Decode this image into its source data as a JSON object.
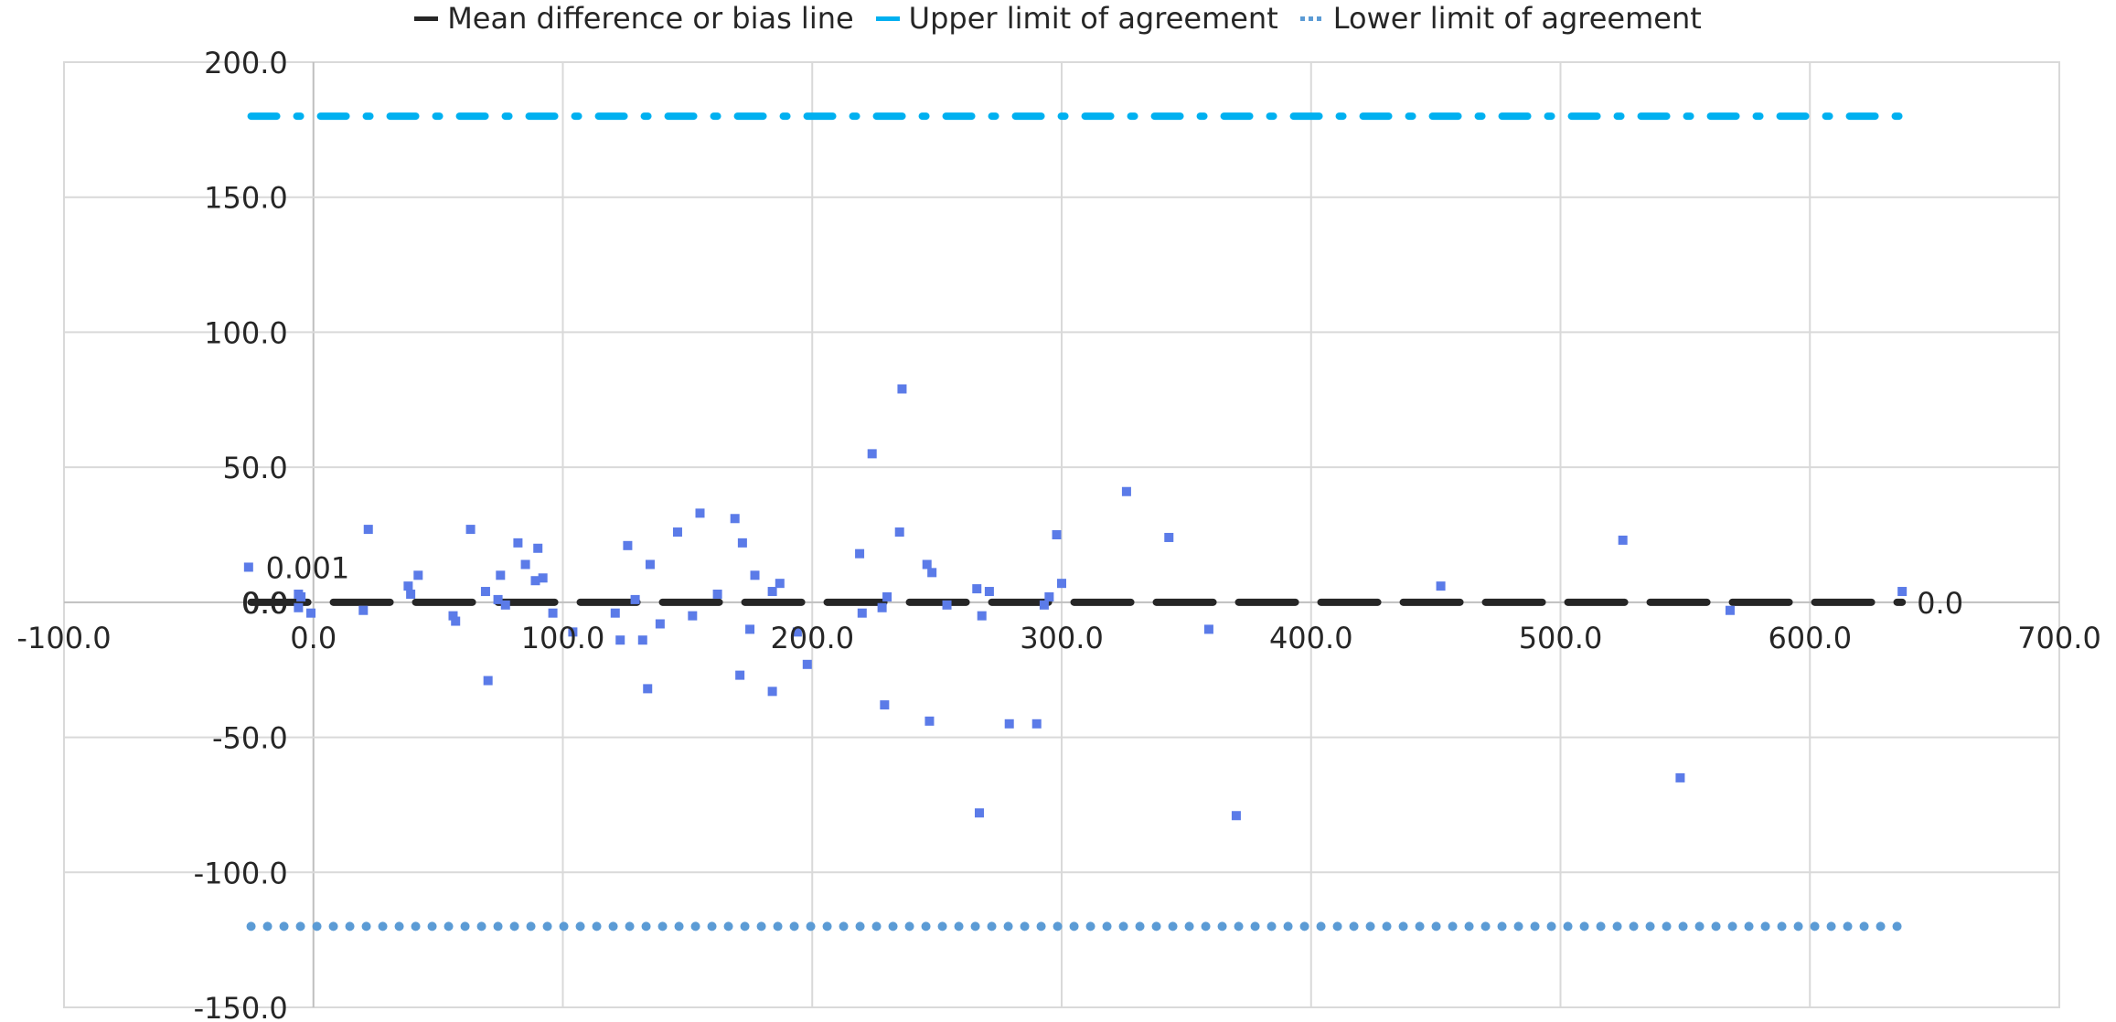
{
  "chart_data": {
    "type": "scatter",
    "title": "",
    "xlabel": "",
    "ylabel": "",
    "xlim": [
      -100,
      700
    ],
    "ylim": [
      -150,
      200
    ],
    "x_ticks": [
      "-100.0",
      "0.0",
      "100.0",
      "200.0",
      "300.0",
      "400.0",
      "500.0",
      "600.0",
      "700.0"
    ],
    "y_ticks": [
      "200.0",
      "150.0",
      "100.0",
      "50.0",
      "0.0",
      "-50.0",
      "-100.0",
      "-150.0"
    ],
    "grid": true,
    "legend_position": "top",
    "legend": [
      {
        "name": "Mean difference or bias line",
        "color": "#262626",
        "style": "dash"
      },
      {
        "name": "Upper limit of agreement",
        "color": "#00B0F0",
        "style": "dash-dot"
      },
      {
        "name": "Lower limit of agreement",
        "color": "#5B9BD5",
        "style": "dotted"
      }
    ],
    "reference_lines": [
      {
        "name": "Mean difference or bias line",
        "y": 0.0,
        "x_range": [
          -25,
          637
        ],
        "color": "#262626",
        "style": "dash"
      },
      {
        "name": "Upper limit of agreement",
        "y": 180.0,
        "x_range": [
          -25,
          637
        ],
        "color": "#00B0F0",
        "style": "dash-dot"
      },
      {
        "name": "Lower limit of agreement",
        "y": -120.0,
        "x_range": [
          -25,
          637
        ],
        "color": "#5B9BD5",
        "style": "dotted"
      }
    ],
    "annotations": [
      {
        "text": "0.001",
        "x": -25,
        "y": 13
      },
      {
        "text": "0.0",
        "x": -25,
        "y": 0
      },
      {
        "text": "0.0",
        "x": 637,
        "y": 0
      }
    ],
    "points_color": "#5B7BE8",
    "points": [
      [
        -26,
        13
      ],
      [
        -6,
        3
      ],
      [
        -5,
        2
      ],
      [
        -6,
        -2
      ],
      [
        -1,
        -4
      ],
      [
        20,
        -3
      ],
      [
        22,
        27
      ],
      [
        38,
        6
      ],
      [
        39,
        3
      ],
      [
        42,
        10
      ],
      [
        56,
        -5
      ],
      [
        57,
        -7
      ],
      [
        63,
        27
      ],
      [
        69,
        4
      ],
      [
        70,
        -29
      ],
      [
        74,
        1
      ],
      [
        75,
        10
      ],
      [
        77,
        -1
      ],
      [
        82,
        22
      ],
      [
        85,
        14
      ],
      [
        89,
        8
      ],
      [
        90,
        20
      ],
      [
        92,
        9
      ],
      [
        96,
        -4
      ],
      [
        104,
        -11
      ],
      [
        121,
        -4
      ],
      [
        123,
        -14
      ],
      [
        126,
        21
      ],
      [
        129,
        1
      ],
      [
        132,
        -14
      ],
      [
        135,
        14
      ],
      [
        134,
        -32
      ],
      [
        139,
        -8
      ],
      [
        146,
        26
      ],
      [
        152,
        -5
      ],
      [
        155,
        33
      ],
      [
        162,
        3
      ],
      [
        169,
        31
      ],
      [
        172,
        22
      ],
      [
        171,
        -27
      ],
      [
        175,
        -10
      ],
      [
        177,
        10
      ],
      [
        184,
        4
      ],
      [
        184,
        -33
      ],
      [
        187,
        7
      ],
      [
        194,
        -11
      ],
      [
        198,
        -23
      ],
      [
        219,
        18
      ],
      [
        220,
        -4
      ],
      [
        224,
        55
      ],
      [
        228,
        -2
      ],
      [
        229,
        -38
      ],
      [
        230,
        2
      ],
      [
        235,
        26
      ],
      [
        236,
        79
      ],
      [
        246,
        14
      ],
      [
        247,
        -44
      ],
      [
        248,
        11
      ],
      [
        254,
        -1
      ],
      [
        266,
        5
      ],
      [
        267,
        -78
      ],
      [
        268,
        -5
      ],
      [
        271,
        4
      ],
      [
        279,
        -45
      ],
      [
        290,
        -45
      ],
      [
        293,
        -1
      ],
      [
        295,
        2
      ],
      [
        298,
        25
      ],
      [
        300,
        7
      ],
      [
        326,
        41
      ],
      [
        343,
        24
      ],
      [
        359,
        -10
      ],
      [
        370,
        -79
      ],
      [
        452,
        6
      ],
      [
        525,
        23
      ],
      [
        548,
        -65
      ],
      [
        568,
        -3
      ],
      [
        637,
        4
      ]
    ]
  }
}
